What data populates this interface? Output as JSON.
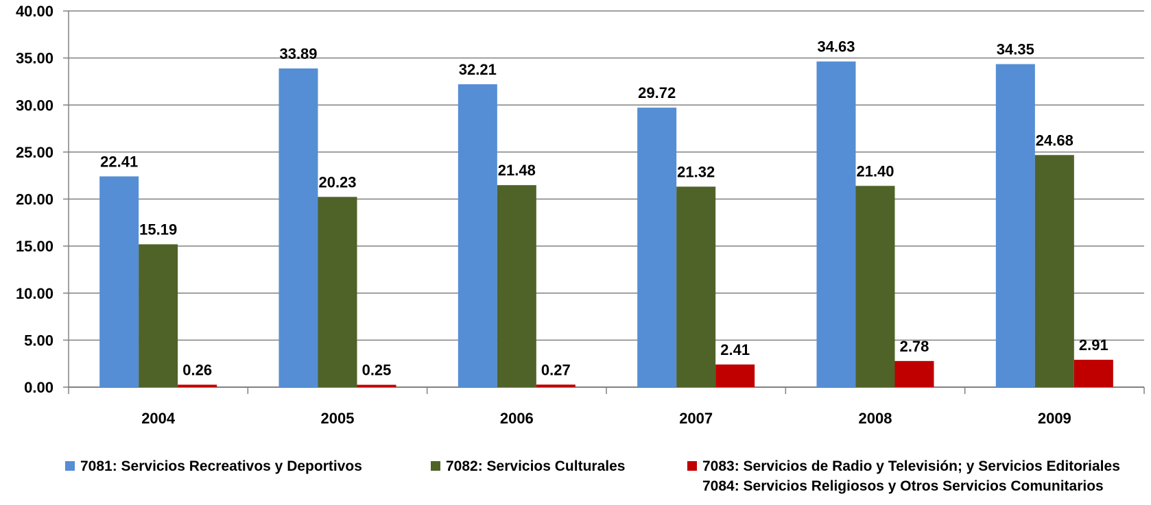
{
  "chart_data": {
    "type": "bar",
    "categories": [
      "2004",
      "2005",
      "2006",
      "2007",
      "2008",
      "2009"
    ],
    "series": [
      {
        "name": "7081: Servicios Recreativos  y Deportivos",
        "color": "#558ED5",
        "values": [
          22.41,
          33.89,
          32.21,
          29.72,
          34.63,
          34.35
        ],
        "labels": [
          "22.41",
          "33.89",
          "32.21",
          "29.72",
          "34.63",
          "34.35"
        ]
      },
      {
        "name": "7082: Servicios Culturales",
        "color": "#4F6228",
        "values": [
          15.19,
          20.23,
          21.48,
          21.32,
          21.4,
          24.68
        ],
        "labels": [
          "15.19",
          "20.23",
          "21.48",
          "21.32",
          "21.40",
          "24.68"
        ]
      },
      {
        "name": "7083: Servicios de Radio  y Televisión;  y Servicios  Editoriales",
        "name_line2": "7084: Servicios Religiosos  y Otros Servicios  Comunitarios",
        "color": "#C00000",
        "values": [
          0.26,
          0.25,
          0.27,
          2.41,
          2.78,
          2.91
        ],
        "labels": [
          "0.26",
          "0.25",
          "0.27",
          "2.41",
          "2.78",
          "2.91"
        ]
      }
    ],
    "ylim": [
      0,
      40
    ],
    "yticks": [
      "0.00",
      "5.00",
      "10.00",
      "15.00",
      "20.00",
      "25.00",
      "30.00",
      "35.00",
      "40.00"
    ],
    "grid": true,
    "legend_position": "bottom",
    "title": "",
    "xlabel": "",
    "ylabel": ""
  }
}
